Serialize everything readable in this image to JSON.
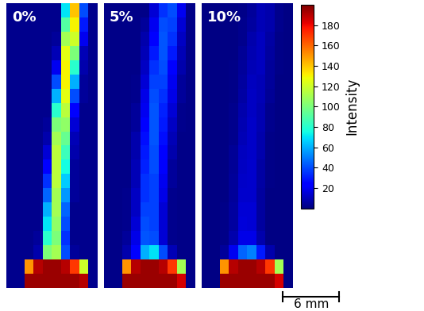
{
  "chart_data": {
    "type": "heatmap",
    "tick_labels": false,
    "panels": [
      {
        "label": "0%",
        "cells": [
          [
            3,
            3,
            3,
            3,
            3,
            3,
            70,
            140,
            40,
            3
          ],
          [
            3,
            3,
            3,
            3,
            3,
            3,
            90,
            130,
            30,
            3
          ],
          [
            3,
            3,
            3,
            3,
            3,
            5,
            110,
            120,
            20,
            3
          ],
          [
            3,
            3,
            3,
            3,
            3,
            10,
            125,
            100,
            10,
            3
          ],
          [
            3,
            3,
            3,
            3,
            3,
            20,
            130,
            80,
            8,
            3
          ],
          [
            3,
            3,
            3,
            3,
            3,
            40,
            130,
            60,
            5,
            3
          ],
          [
            3,
            3,
            3,
            3,
            3,
            60,
            125,
            40,
            5,
            3
          ],
          [
            3,
            3,
            3,
            3,
            3,
            80,
            115,
            25,
            3,
            3
          ],
          [
            3,
            3,
            3,
            3,
            5,
            100,
            105,
            15,
            3,
            3
          ],
          [
            3,
            3,
            3,
            3,
            8,
            110,
            95,
            10,
            3,
            3
          ],
          [
            3,
            3,
            3,
            3,
            15,
            115,
            85,
            8,
            3,
            3
          ],
          [
            3,
            3,
            3,
            3,
            25,
            115,
            75,
            5,
            3,
            3
          ],
          [
            3,
            3,
            3,
            3,
            35,
            115,
            65,
            5,
            3,
            3
          ],
          [
            3,
            3,
            3,
            3,
            45,
            110,
            55,
            5,
            3,
            3
          ],
          [
            3,
            3,
            3,
            3,
            60,
            110,
            45,
            3,
            3,
            3
          ],
          [
            3,
            3,
            3,
            3,
            70,
            105,
            40,
            3,
            3,
            3
          ],
          [
            3,
            3,
            3,
            5,
            80,
            100,
            35,
            3,
            3,
            3
          ],
          [
            3,
            3,
            3,
            8,
            100,
            110,
            40,
            5,
            3,
            3
          ],
          [
            3,
            3,
            150,
            190,
            195,
            195,
            190,
            170,
            120,
            3
          ],
          [
            3,
            3,
            195,
            195,
            195,
            195,
            195,
            195,
            190,
            3
          ]
        ]
      },
      {
        "label": "5%",
        "cells": [
          [
            2,
            2,
            2,
            2,
            2,
            15,
            35,
            40,
            20,
            2
          ],
          [
            2,
            2,
            2,
            2,
            5,
            20,
            40,
            38,
            15,
            2
          ],
          [
            2,
            2,
            2,
            2,
            8,
            25,
            42,
            35,
            12,
            2
          ],
          [
            2,
            2,
            2,
            2,
            10,
            30,
            42,
            30,
            10,
            2
          ],
          [
            2,
            2,
            2,
            2,
            12,
            35,
            40,
            25,
            8,
            2
          ],
          [
            2,
            2,
            2,
            3,
            15,
            38,
            38,
            20,
            5,
            2
          ],
          [
            2,
            2,
            2,
            3,
            18,
            40,
            35,
            18,
            5,
            2
          ],
          [
            2,
            2,
            2,
            5,
            20,
            42,
            32,
            15,
            3,
            2
          ],
          [
            2,
            2,
            2,
            5,
            25,
            42,
            30,
            12,
            3,
            2
          ],
          [
            2,
            2,
            2,
            8,
            28,
            42,
            28,
            10,
            2,
            2
          ],
          [
            2,
            2,
            2,
            8,
            30,
            40,
            25,
            8,
            2,
            2
          ],
          [
            2,
            2,
            2,
            10,
            32,
            40,
            22,
            5,
            2,
            2
          ],
          [
            2,
            2,
            2,
            10,
            35,
            38,
            20,
            5,
            2,
            2
          ],
          [
            2,
            2,
            3,
            12,
            35,
            38,
            18,
            3,
            2,
            2
          ],
          [
            2,
            2,
            3,
            12,
            38,
            38,
            15,
            3,
            2,
            2
          ],
          [
            2,
            2,
            3,
            15,
            40,
            38,
            15,
            3,
            2,
            2
          ],
          [
            2,
            2,
            5,
            18,
            42,
            40,
            15,
            3,
            2,
            2
          ],
          [
            2,
            2,
            8,
            25,
            60,
            70,
            40,
            10,
            2,
            2
          ],
          [
            2,
            2,
            150,
            190,
            195,
            195,
            190,
            170,
            110,
            2
          ],
          [
            2,
            2,
            195,
            195,
            195,
            195,
            195,
            195,
            185,
            2
          ]
        ]
      },
      {
        "label": "10%",
        "cells": [
          [
            1,
            1,
            1,
            1,
            2,
            5,
            10,
            8,
            3,
            1
          ],
          [
            1,
            1,
            1,
            1,
            3,
            6,
            10,
            8,
            3,
            1
          ],
          [
            1,
            1,
            1,
            1,
            3,
            8,
            11,
            7,
            2,
            1
          ],
          [
            1,
            1,
            1,
            1,
            4,
            9,
            11,
            6,
            2,
            1
          ],
          [
            1,
            1,
            1,
            2,
            5,
            10,
            11,
            5,
            2,
            1
          ],
          [
            1,
            1,
            1,
            2,
            6,
            11,
            10,
            5,
            1,
            1
          ],
          [
            1,
            1,
            1,
            2,
            7,
            12,
            10,
            4,
            1,
            1
          ],
          [
            1,
            1,
            1,
            3,
            8,
            12,
            9,
            3,
            1,
            1
          ],
          [
            1,
            1,
            1,
            3,
            9,
            13,
            9,
            3,
            1,
            1
          ],
          [
            1,
            1,
            1,
            3,
            10,
            13,
            8,
            2,
            1,
            1
          ],
          [
            1,
            1,
            1,
            4,
            11,
            13,
            8,
            2,
            1,
            1
          ],
          [
            1,
            1,
            1,
            4,
            12,
            14,
            7,
            2,
            1,
            1
          ],
          [
            1,
            1,
            1,
            5,
            13,
            14,
            7,
            2,
            1,
            1
          ],
          [
            1,
            1,
            1,
            5,
            14,
            14,
            6,
            1,
            1,
            1
          ],
          [
            1,
            1,
            2,
            6,
            15,
            15,
            6,
            1,
            1,
            1
          ],
          [
            1,
            1,
            2,
            6,
            16,
            15,
            6,
            1,
            1,
            1
          ],
          [
            1,
            1,
            2,
            8,
            18,
            18,
            8,
            1,
            1,
            1
          ],
          [
            1,
            1,
            5,
            20,
            45,
            50,
            30,
            8,
            1,
            1
          ],
          [
            1,
            1,
            150,
            190,
            195,
            195,
            190,
            170,
            110,
            1
          ],
          [
            1,
            1,
            195,
            195,
            195,
            195,
            195,
            195,
            185,
            1
          ]
        ]
      }
    ],
    "colorbar": {
      "label": "Intensity",
      "range": [
        0,
        200
      ],
      "ticks": [
        20,
        40,
        60,
        80,
        100,
        120,
        140,
        160,
        180
      ]
    },
    "scale_bar": "6 mm"
  }
}
